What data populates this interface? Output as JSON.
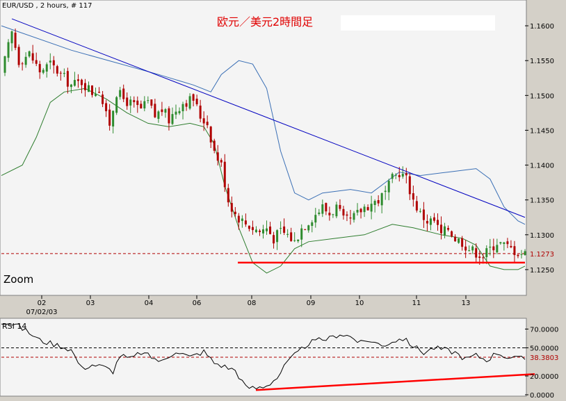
{
  "header": {
    "symbol_label": "EUR/USD , 2 hours, # 117",
    "title": "欧元／美元2時間足",
    "zoom_label": "Zoom",
    "title_color": "#e00000"
  },
  "colors": {
    "up_candle": "#2e8b2e",
    "down_candle": "#b00000",
    "upper_band": "#3a6fb5",
    "lower_band": "#2e7d2e",
    "trendline": "#0000c0",
    "support_line": "#ff0000",
    "price_marker": "#b00000",
    "rsi_line": "#000000"
  },
  "chart_data": [
    {
      "type": "candlestick",
      "symbol": "EUR/USD",
      "timeframe": "2 hours",
      "bars_shown": 117,
      "ylim": [
        1.1215,
        1.1635
      ],
      "y_ticks": [
        "1.1600",
        "1.1550",
        "1.1500",
        "1.1450",
        "1.1400",
        "1.1350",
        "1.1300",
        "1.1250"
      ],
      "x_ticks": [
        "02",
        "03",
        "04",
        "06",
        "08",
        "09",
        "10",
        "11",
        "13"
      ],
      "x_sub_label": "07/02/03",
      "current_price_label": "1.1273",
      "current_price": 1.1273,
      "support_level": 1.126,
      "trendline": {
        "from": 1.161,
        "to": 1.1325
      },
      "close_path": [
        [
          0,
          1.153
        ],
        [
          3,
          1.159
        ],
        [
          5,
          1.155
        ],
        [
          8,
          1.156
        ],
        [
          11,
          1.1535
        ],
        [
          14,
          1.1545
        ],
        [
          17,
          1.153
        ],
        [
          20,
          1.1515
        ],
        [
          23,
          1.152
        ],
        [
          26,
          1.1505
        ],
        [
          28,
          1.151
        ],
        [
          30,
          1.147
        ],
        [
          31,
          1.146
        ],
        [
          33,
          1.1505
        ],
        [
          35,
          1.1495
        ],
        [
          38,
          1.1485
        ],
        [
          40,
          1.148
        ],
        [
          42,
          1.149
        ],
        [
          44,
          1.147
        ],
        [
          46,
          1.148
        ],
        [
          48,
          1.1465
        ],
        [
          50,
          1.148
        ],
        [
          52,
          1.149
        ],
        [
          55,
          1.1495
        ],
        [
          57,
          1.147
        ],
        [
          59,
          1.146
        ],
        [
          61,
          1.142
        ],
        [
          63,
          1.14
        ],
        [
          65,
          1.135
        ],
        [
          67,
          1.133
        ],
        [
          69,
          1.132
        ],
        [
          72,
          1.131
        ],
        [
          74,
          1.1305
        ],
        [
          76,
          1.131
        ],
        [
          78,
          1.1295
        ],
        [
          80,
          1.1305
        ],
        [
          82,
          1.13
        ],
        [
          84,
          1.129
        ],
        [
          86,
          1.131
        ],
        [
          88,
          1.132
        ],
        [
          90,
          1.133
        ],
        [
          92,
          1.134
        ],
        [
          94,
          1.133
        ],
        [
          96,
          1.134
        ],
        [
          98,
          1.132
        ],
        [
          100,
          1.132
        ],
        [
          102,
          1.133
        ],
        [
          104,
          1.134
        ],
        [
          106,
          1.1345
        ],
        [
          108,
          1.135
        ],
        [
          110,
          1.136
        ],
        [
          112,
          1.138
        ],
        [
          114,
          1.139
        ],
        [
          116,
          1.138
        ],
        [
          118,
          1.135
        ],
        [
          120,
          1.133
        ],
        [
          122,
          1.132
        ],
        [
          124,
          1.132
        ],
        [
          126,
          1.13
        ],
        [
          128,
          1.131
        ],
        [
          130,
          1.1295
        ],
        [
          132,
          1.129
        ],
        [
          134,
          1.128
        ],
        [
          136,
          1.1275
        ],
        [
          138,
          1.127
        ],
        [
          140,
          1.128
        ],
        [
          142,
          1.129
        ],
        [
          144,
          1.1285
        ],
        [
          146,
          1.128
        ],
        [
          148,
          1.1275
        ],
        [
          150,
          1.1273
        ]
      ],
      "upper_band": [
        [
          0,
          1.16
        ],
        [
          20,
          1.1565
        ],
        [
          45,
          1.153
        ],
        [
          55,
          1.1515
        ],
        [
          60,
          1.1505
        ],
        [
          63,
          1.153
        ],
        [
          68,
          1.155
        ],
        [
          72,
          1.1545
        ],
        [
          76,
          1.151
        ],
        [
          80,
          1.142
        ],
        [
          84,
          1.136
        ],
        [
          88,
          1.135
        ],
        [
          92,
          1.136
        ],
        [
          100,
          1.1365
        ],
        [
          106,
          1.136
        ],
        [
          110,
          1.1375
        ],
        [
          114,
          1.139
        ],
        [
          120,
          1.1385
        ],
        [
          128,
          1.139
        ],
        [
          136,
          1.1395
        ],
        [
          140,
          1.138
        ],
        [
          144,
          1.134
        ],
        [
          148,
          1.132
        ],
        [
          150,
          1.1315
        ]
      ],
      "lower_band": [
        [
          0,
          1.1385
        ],
        [
          6,
          1.14
        ],
        [
          10,
          1.144
        ],
        [
          14,
          1.149
        ],
        [
          18,
          1.1505
        ],
        [
          24,
          1.151
        ],
        [
          30,
          1.1495
        ],
        [
          36,
          1.1475
        ],
        [
          42,
          1.146
        ],
        [
          48,
          1.1455
        ],
        [
          54,
          1.146
        ],
        [
          58,
          1.1455
        ],
        [
          61,
          1.143
        ],
        [
          64,
          1.137
        ],
        [
          68,
          1.131
        ],
        [
          72,
          1.126
        ],
        [
          76,
          1.1245
        ],
        [
          80,
          1.1255
        ],
        [
          84,
          1.128
        ],
        [
          88,
          1.129
        ],
        [
          96,
          1.1295
        ],
        [
          104,
          1.13
        ],
        [
          112,
          1.1315
        ],
        [
          118,
          1.131
        ],
        [
          126,
          1.13
        ],
        [
          132,
          1.1295
        ],
        [
          136,
          1.1285
        ],
        [
          140,
          1.1255
        ],
        [
          144,
          1.125
        ],
        [
          148,
          1.125
        ],
        [
          150,
          1.1255
        ]
      ]
    },
    {
      "type": "line",
      "title": "RSI 14",
      "ylim": [
        0,
        80
      ],
      "y_ticks": [
        "70.0000",
        "50.0000",
        "20.0000",
        "0.0000"
      ],
      "reference_levels": [
        50,
        40
      ],
      "current_value_label": "38.3803",
      "current_value": 38.3803,
      "trendline": {
        "from": 5,
        "to": 22
      },
      "series": [
        [
          0,
          78
        ],
        [
          4,
          75
        ],
        [
          8,
          66
        ],
        [
          11,
          58
        ],
        [
          14,
          55
        ],
        [
          17,
          52
        ],
        [
          20,
          48
        ],
        [
          23,
          28
        ],
        [
          26,
          32
        ],
        [
          29,
          30
        ],
        [
          32,
          25
        ],
        [
          34,
          42
        ],
        [
          37,
          38
        ],
        [
          40,
          45
        ],
        [
          43,
          40
        ],
        [
          46,
          35
        ],
        [
          50,
          47
        ],
        [
          54,
          40
        ],
        [
          58,
          46
        ],
        [
          61,
          34
        ],
        [
          64,
          30
        ],
        [
          67,
          26
        ],
        [
          70,
          8
        ],
        [
          73,
          7
        ],
        [
          76,
          10
        ],
        [
          79,
          18
        ],
        [
          82,
          35
        ],
        [
          85,
          45
        ],
        [
          88,
          55
        ],
        [
          91,
          58
        ],
        [
          94,
          60
        ],
        [
          97,
          65
        ],
        [
          100,
          62
        ],
        [
          103,
          55
        ],
        [
          106,
          58
        ],
        [
          109,
          52
        ],
        [
          112,
          57
        ],
        [
          115,
          60
        ],
        [
          118,
          52
        ],
        [
          121,
          45
        ],
        [
          124,
          50
        ],
        [
          127,
          48
        ],
        [
          130,
          45
        ],
        [
          133,
          38
        ],
        [
          136,
          42
        ],
        [
          139,
          37
        ],
        [
          142,
          45
        ],
        [
          145,
          40
        ],
        [
          148,
          38.4
        ],
        [
          150,
          38.4
        ]
      ]
    }
  ]
}
